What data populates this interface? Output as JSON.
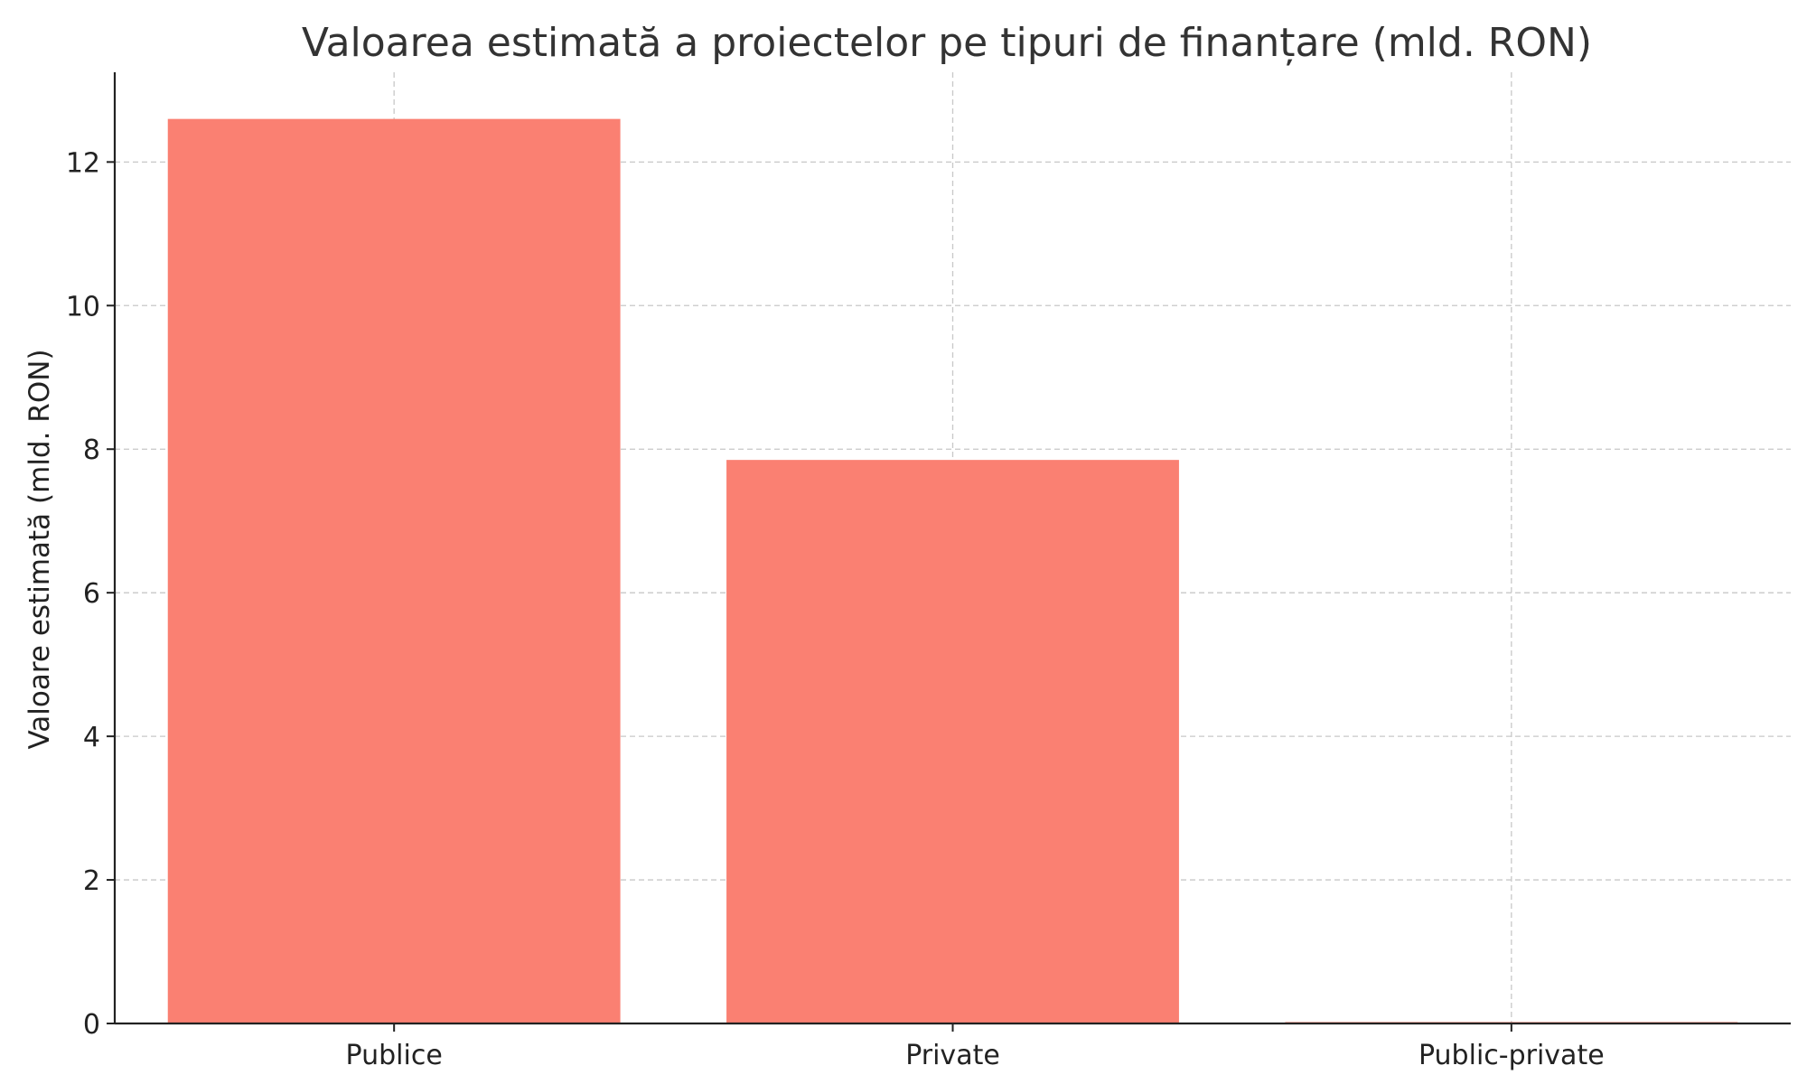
{
  "chart_data": {
    "type": "bar",
    "title": "Valoarea estimată a proiectelor pe tipuri de finanțare (mld. RON)",
    "xlabel": "",
    "ylabel": "Valoare estimată (mld. RON)",
    "categories": [
      "Publice",
      "Private",
      "Public-private"
    ],
    "values": [
      12.6,
      7.85,
      0.02
    ],
    "ylim": [
      0,
      13.25
    ],
    "yticks": [
      0,
      2,
      4,
      6,
      8,
      10,
      12
    ],
    "grid": true,
    "bar_color": "#fa8072"
  }
}
